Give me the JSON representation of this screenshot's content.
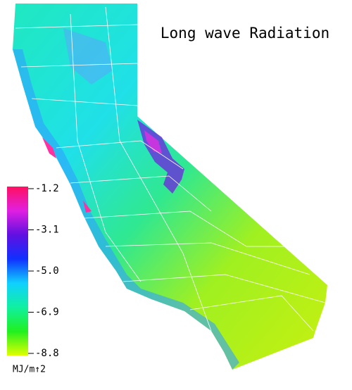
{
  "title": "Long wave Radiation",
  "colorbar": {
    "label": "MJ/m↑2",
    "range": [
      -8.8,
      -1.2
    ],
    "colors": [
      "#ff1060",
      "#e020e0",
      "#6010e0",
      "#1030ff",
      "#10d0ff",
      "#10f0a0",
      "#20f020",
      "#e0ff00"
    ],
    "ticks": [
      {
        "value": -1.2,
        "label": "-1.2"
      },
      {
        "value": -3.1,
        "label": "-3.1"
      },
      {
        "value": -5,
        "label": "-5.0"
      },
      {
        "value": -6.9,
        "label": "-6.9"
      },
      {
        "value": -8.8,
        "label": "-8.8"
      }
    ]
  }
}
